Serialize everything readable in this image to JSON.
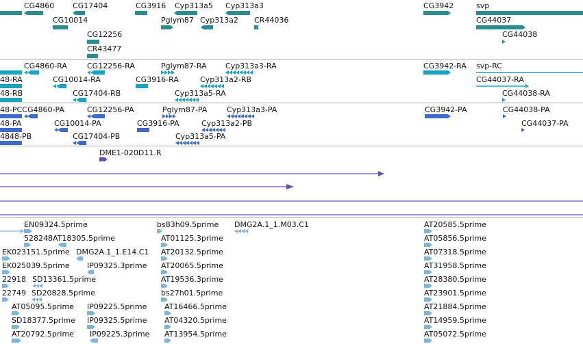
{
  "colors": {
    "gene": "#2a8c8c",
    "transcript": "#19a3c0",
    "protein": "#3d69c9",
    "clone": "#6a4fb0",
    "est": "#7cb4dd",
    "separator": "#a9a9a9"
  },
  "tracks": {
    "genes": {
      "labels": [
        "CG4860",
        "CG17404",
        "CG3916",
        "Cyp313a5",
        "Cyp313a3",
        "CG3942",
        "svp",
        "CG10014",
        "Pglym87",
        "Cyp313a2",
        "CR44036",
        "CG44037",
        "CG12256",
        "CG44038",
        "CR43477"
      ]
    },
    "transcripts": {
      "labels": [
        "CG4860-RA",
        "CG12256-RA",
        "Pglym87-RA",
        "Cyp313a3-RA",
        "CG3942-RA",
        "svp-RC",
        "48-RA",
        "CG10014-RA",
        "CG3916-RA",
        "Cyp313a2-RB",
        "CG44037-RA",
        "48-RB",
        "CG17404-RB",
        "Cyp313a5-RA",
        "CG44038-RA"
      ]
    },
    "proteins": {
      "labels": [
        "48-PCCG4860-PA",
        "CG12256-PA",
        "Pglym87-PA",
        "Cyp313a3-PA",
        "CG3942-PA",
        "CG44038-PA",
        "48-PA",
        "CG10014-PA",
        "CG3916-PA",
        "Cyp313a2-PB",
        "CG44037-PA",
        "4848-PB",
        "CG17404-PB",
        "Cyp313a5-PA"
      ]
    },
    "clones": {
      "labels": [
        "DME1-020D11.R"
      ]
    },
    "ests": {
      "labels": [
        "EN09324.5prime",
        "bs83h09.5prime",
        "DMG2A.1_1.M03.C1",
        "AT20585.5prime",
        "528248AT18305.5prime",
        "AT01125.3prime",
        "AT05856.5prime",
        "EK023151.5prime",
        "DMG2A.1_1.E14.C1",
        "AT20132.5prime",
        "AT07318.5prime",
        "EK025039.5prime",
        "IP09325.3prime",
        "AT20065.5prime",
        "AT31958.5prime",
        "22918",
        "SD13361.5prime",
        "AT19536.3prime",
        "AT28380.5prime",
        "22749",
        "SD20828.5prime",
        "bs27h01.5prime",
        "AT23901.5prime",
        "AT05095.5prime",
        "IP09225.5prime",
        "AT16466.5prime",
        "AT21884.5prime",
        "SD18377.5prime",
        "IP09325.5prime",
        "AT04320.5prime",
        "AT14959.5prime",
        "AT20792.5prime",
        "IP09225.3prime",
        "AT13954.5prime",
        "AT05072.5prime"
      ]
    }
  }
}
